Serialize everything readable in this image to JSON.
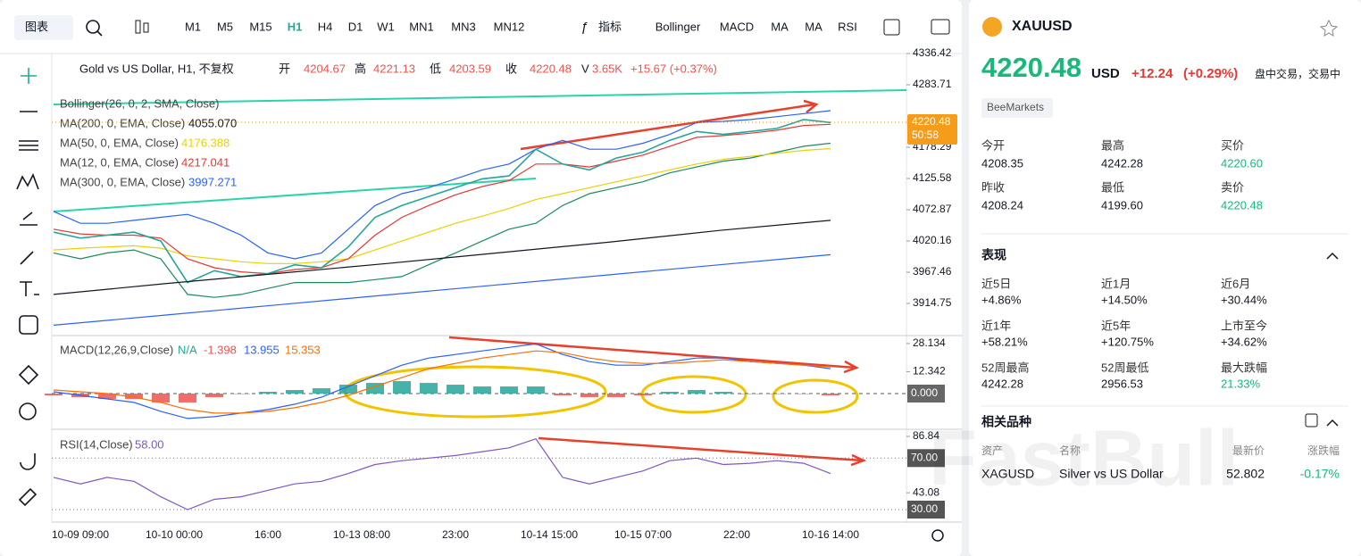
{
  "toolbar": {
    "chart_menu": "图表",
    "timeframes": [
      "M1",
      "M5",
      "M15",
      "H1",
      "H4",
      "D1",
      "W1",
      "MN1",
      "MN3",
      "MN12"
    ],
    "active_index": 3,
    "active_color": "#22ab94",
    "indicators_menu": "指标",
    "indicators": [
      "Bollinger",
      "MACD",
      "MA",
      "MA",
      "RSI"
    ]
  },
  "legend": {
    "symbol": "Gold vs US Dollar, H1, 不复权",
    "open_label": "开",
    "open": 4204.67,
    "high_label": "高",
    "high": 4221.13,
    "low_label": "低",
    "low": 4203.59,
    "close_label": "收",
    "close": 4220.48,
    "volume_label": "V",
    "volume": "3.65K",
    "change": "+15.67 (+0.37%)"
  },
  "indicators": [
    {
      "label": "Bollinger(26, 0, 2, SMA, Close)"
    },
    {
      "label": "MA(200, 0, EMA, Close)",
      "value": "4055.070",
      "color": "#131722"
    },
    {
      "label": "MA(50, 0, EMA, Close)",
      "value": "4176.388",
      "color": "#e8d200"
    },
    {
      "label": "MA(12, 0, EMA, Close)",
      "value": "4217.041",
      "color": "#e53935"
    },
    {
      "label": "MA(300, 0, EMA, Close)",
      "value": "3997.271",
      "color": "#2962ff"
    }
  ],
  "price_pane": {
    "ylim": [
      3862.03,
      4343.95
    ],
    "yticks": [
      4336.42,
      4283.71,
      4178.29,
      4125.58,
      4072.87,
      4020.16,
      3967.46,
      3914.75
    ],
    "last_price": 4220.48,
    "countdown": "50:58",
    "series": [
      {
        "name": "bb_upper",
        "color": "#2962ff",
        "values": [
          4070,
          4050,
          4050,
          4055,
          4060,
          4065,
          4050,
          4030,
          4000,
          3990,
          4000,
          4040,
          4080,
          4100,
          4110,
          4125,
          4140,
          4150,
          4175,
          4190,
          4175,
          4175,
          4185,
          4200,
          4220,
          4222,
          4225,
          4230,
          4235,
          4240
        ]
      },
      {
        "name": "bb_lower",
        "color": "#1b8a5a",
        "values": [
          4000,
          3990,
          4000,
          4005,
          3990,
          3930,
          3925,
          3930,
          3940,
          3950,
          3950,
          3950,
          3955,
          3960,
          3980,
          4000,
          4020,
          4040,
          4050,
          4080,
          4100,
          4110,
          4120,
          4135,
          4145,
          4155,
          4160,
          4170,
          4180,
          4185
        ]
      },
      {
        "name": "ma50",
        "color": "#e8d200",
        "values": [
          4005,
          4008,
          4010,
          4012,
          4008,
          3995,
          3990,
          3985,
          3982,
          3982,
          3985,
          3990,
          4005,
          4020,
          4035,
          4050,
          4062,
          4075,
          4090,
          4100,
          4110,
          4120,
          4130,
          4140,
          4150,
          4158,
          4163,
          4168,
          4173,
          4176
        ]
      },
      {
        "name": "ma12",
        "color": "#e53935",
        "values": [
          4040,
          4032,
          4030,
          4030,
          4025,
          3990,
          3975,
          3968,
          3965,
          3972,
          3975,
          3990,
          4030,
          4060,
          4080,
          4098,
          4112,
          4122,
          4150,
          4150,
          4145,
          4155,
          4165,
          4180,
          4195,
          4198,
          4202,
          4207,
          4215,
          4217
        ]
      },
      {
        "name": "close",
        "color": "#26a69a",
        "values": [
          4035,
          4025,
          4030,
          4035,
          4020,
          3950,
          3970,
          3960,
          3965,
          3980,
          3975,
          4010,
          4060,
          4080,
          4095,
          4110,
          4125,
          4130,
          4175,
          4150,
          4140,
          4160,
          4170,
          4190,
          4205,
          4200,
          4205,
          4210,
          4225,
          4220
        ]
      },
      {
        "name": "ma200",
        "color": "#131722",
        "values": [
          3930,
          3948,
          3965,
          3982,
          4000,
          4018,
          4038,
          4055
        ]
      },
      {
        "name": "ma300",
        "color": "#2962ff",
        "values": [
          3878,
          3895,
          3912,
          3929,
          3946,
          3963,
          3980,
          3997
        ]
      }
    ]
  },
  "macd_pane": {
    "label": "MACD(12,26,9,Close)",
    "na": "N/A",
    "hist_value": "-1.398",
    "macd_value": "13.955",
    "signal_value": "15.353",
    "ylim": [
      -19.6,
      32.16
    ],
    "yticks": [
      28.134,
      12.342,
      {
        "value": 0,
        "label": "0.000"
      }
    ],
    "macd": {
      "color": "#2962ff",
      "values": [
        1,
        -1,
        -3,
        -5,
        -10,
        -14,
        -13,
        -11,
        -9,
        -6,
        -2,
        4,
        10,
        16,
        20,
        22,
        24,
        26,
        28,
        22,
        18,
        16,
        16,
        18,
        20,
        20,
        18,
        17,
        16,
        14
      ]
    },
    "signal": {
      "color": "#ff6d00",
      "values": [
        2,
        1,
        0,
        -2,
        -5,
        -9,
        -11,
        -11,
        -10,
        -8,
        -5,
        -1,
        4,
        9,
        14,
        17,
        20,
        22,
        24,
        23,
        20,
        18,
        17,
        17,
        18,
        19,
        18,
        17,
        16,
        15
      ]
    },
    "histogram": {
      "up_color": "#26a69a",
      "down_color": "#ef5350",
      "values": [
        -1,
        -2,
        -3,
        -3,
        -5,
        -5,
        -2,
        0,
        1,
        2,
        3,
        5,
        6,
        7,
        6,
        5,
        4,
        4,
        4,
        -1,
        -2,
        -2,
        -1,
        1,
        2,
        1,
        0,
        0,
        0,
        -1
      ]
    }
  },
  "rsi_pane": {
    "label": "RSI(14,Close)",
    "value": "58.00",
    "color": "#7e57c2",
    "ylim": [
      20.3,
      91.0
    ],
    "yticks": [
      86.84,
      {
        "value": 70,
        "label": "70.00"
      },
      43.08,
      {
        "value": 30,
        "label": "30.00"
      }
    ],
    "values": [
      55,
      50,
      55,
      52,
      40,
      30,
      38,
      40,
      45,
      50,
      52,
      58,
      65,
      68,
      70,
      72,
      75,
      78,
      85,
      55,
      50,
      55,
      60,
      68,
      70,
      65,
      66,
      68,
      66,
      58
    ]
  },
  "time_labels": [
    "10-09 09:00",
    "10-10 00:00",
    "16:00",
    "10-13 08:00",
    "23:00",
    "10-14 15:00",
    "10-15 07:00",
    "22:00",
    "10-16 14:00"
  ],
  "quote": {
    "symbol": "XAUUSD",
    "price": "4220.48",
    "currency": "USD",
    "change": "+12.24",
    "change_pct": "(+0.29%)",
    "status": "盘中交易，交易中",
    "broker": "BeeMarkets",
    "stats": [
      {
        "label": "今开",
        "value": "4208.35"
      },
      {
        "label": "最高",
        "value": "4242.28"
      },
      {
        "label": "买价",
        "value": "4220.60",
        "color": "#16b979"
      },
      {
        "label": "昨收",
        "value": "4208.24"
      },
      {
        "label": "最低",
        "value": "4199.60"
      },
      {
        "label": "卖价",
        "value": "4220.48",
        "color": "#16b979"
      }
    ]
  },
  "performance": {
    "title": "表现",
    "items": [
      {
        "label": "近5日",
        "value": "+4.86%"
      },
      {
        "label": "近1月",
        "value": "+14.50%"
      },
      {
        "label": "近6月",
        "value": "+30.44%"
      },
      {
        "label": "近1年",
        "value": "+58.21%"
      },
      {
        "label": "近5年",
        "value": "+120.75%"
      },
      {
        "label": "上市至今",
        "value": "+34.62%"
      },
      {
        "label": "52周最高",
        "value": "4242.28"
      },
      {
        "label": "52周最低",
        "value": "2956.53"
      },
      {
        "label": "最大跌幅",
        "value": "21.33%",
        "color": "#16b979"
      }
    ]
  },
  "related": {
    "title": "相关品种",
    "headers": [
      "资产",
      "名称",
      "最新价",
      "涨跌幅"
    ],
    "rows": [
      [
        "XAGUSD",
        "Silver vs US Dollar",
        "52.802",
        "-0.17%"
      ]
    ]
  },
  "watermark": "FastBull"
}
